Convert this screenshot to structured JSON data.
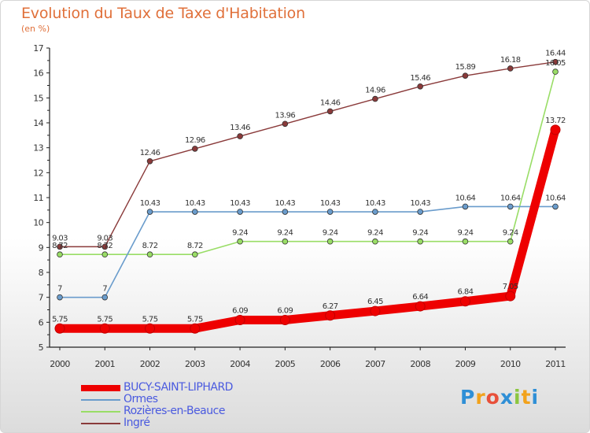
{
  "header": {
    "title": "Evolution du Taux de Taxe d'Habitation",
    "subtitle": "(en %)"
  },
  "logo": {
    "text": "Proxiti"
  },
  "chart_data": {
    "type": "line",
    "title": "Evolution du Taux de Taxe d'Habitation",
    "subtitle": "(en %)",
    "xlabel": "",
    "ylabel": "",
    "x": [
      "2000",
      "2001",
      "2002",
      "2003",
      "2004",
      "2005",
      "2006",
      "2007",
      "2008",
      "2009",
      "2010",
      "2011"
    ],
    "ylim": [
      5,
      17
    ],
    "yticks": [
      "5",
      "6",
      "7",
      "8",
      "9",
      "10",
      "11",
      "12",
      "13",
      "14",
      "15",
      "16",
      "17"
    ],
    "grid": false,
    "legend_position": "bottom-left",
    "series": [
      {
        "name": "BUCY-SAINT-LIPHARD",
        "color": "#ee0000",
        "values": [
          5.75,
          5.75,
          5.75,
          5.75,
          6.09,
          6.09,
          6.27,
          6.45,
          6.64,
          6.84,
          7.05,
          13.72
        ],
        "labels": [
          "5.75",
          "5.75",
          "5.75",
          "5.75",
          "6.09",
          "6.09",
          "6.27",
          "6.45",
          "6.64",
          "6.84",
          "7.05",
          "13.72"
        ]
      },
      {
        "name": "Ormes",
        "color": "#6a9ccc",
        "values": [
          7,
          7,
          10.43,
          10.43,
          10.43,
          10.43,
          10.43,
          10.43,
          10.43,
          10.64,
          10.64,
          10.64
        ],
        "labels": [
          "7",
          "7",
          "10.43",
          "10.43",
          "10.43",
          "10.43",
          "10.43",
          "10.43",
          "10.43",
          "10.64",
          "10.64",
          "10.64"
        ]
      },
      {
        "name": "Rozières-en-Beauce",
        "color": "#99dd66",
        "values": [
          8.72,
          8.72,
          8.72,
          8.72,
          9.24,
          9.24,
          9.24,
          9.24,
          9.24,
          9.24,
          9.24,
          16.05
        ],
        "labels": [
          "8.72",
          "8.72",
          "8.72",
          "8.72",
          "9.24",
          "9.24",
          "9.24",
          "9.24",
          "9.24",
          "9.24",
          "9.24",
          "16.05"
        ]
      },
      {
        "name": "Ingré",
        "color": "#8a3a3a",
        "values": [
          9.03,
          9.03,
          12.46,
          12.96,
          13.46,
          13.96,
          14.46,
          14.96,
          15.46,
          15.89,
          16.18,
          16.44
        ],
        "labels": [
          "9.03",
          "9.03",
          "12.46",
          "12.96",
          "13.46",
          "13.96",
          "14.46",
          "14.96",
          "15.46",
          "15.89",
          "16.18",
          "16.44"
        ]
      }
    ]
  }
}
